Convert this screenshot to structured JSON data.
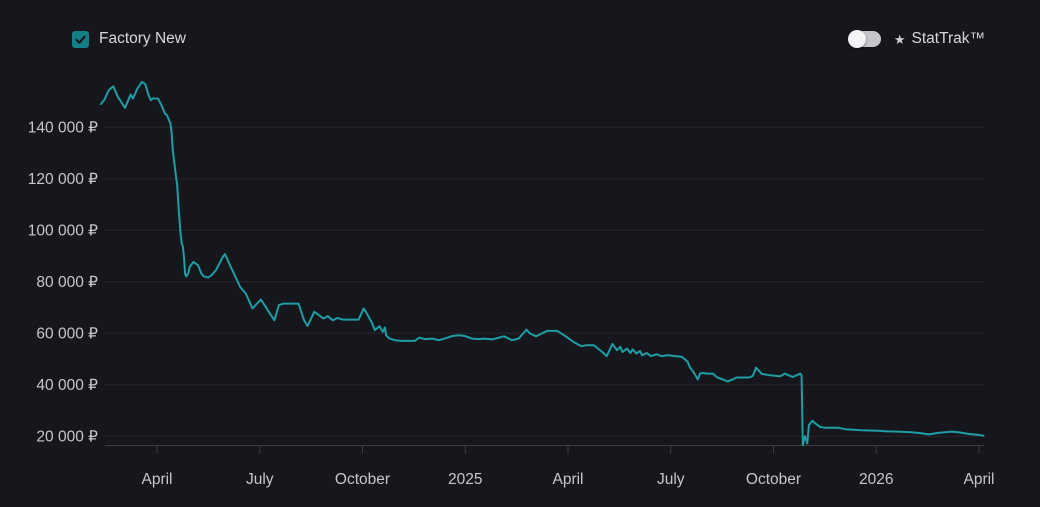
{
  "header": {
    "filter_checkbox": {
      "label": "Factory New",
      "checked": true
    },
    "stattrak_toggle": {
      "star": "★",
      "label": "StatTrak™",
      "enabled": false
    }
  },
  "colors": {
    "background": "#16171c",
    "line": "#1e9da5",
    "checkbox_fill": "#147e89",
    "checkmark": "#14151a",
    "grid": "#26272d",
    "axis": "#3c3d43",
    "tick_label": "#c6c7cb",
    "header_text": "#d7d8db",
    "toggle_track": "#c6c6ca",
    "toggle_knob": "#f4f4f6"
  },
  "chart_data": {
    "type": "line",
    "title": "",
    "currency": "RUB",
    "legend_position": "none",
    "grid": "horizontal-only",
    "y_axis": {
      "range_approx": [
        15000,
        162000
      ],
      "ticks": [
        {
          "value": 140000,
          "label": "140 000 ₽"
        },
        {
          "value": 120000,
          "label": "120 000 ₽"
        },
        {
          "value": 100000,
          "label": "100 000 ₽"
        },
        {
          "value": 80000,
          "label": "80 000 ₽"
        },
        {
          "value": 60000,
          "label": "60 000 ₽"
        },
        {
          "value": 40000,
          "label": "40 000 ₽"
        },
        {
          "value": 20000,
          "label": "20 000 ₽"
        }
      ]
    },
    "x_axis": {
      "domain": [
        "2024-02-10",
        "2026-04-08"
      ],
      "ticks": [
        {
          "label": "April",
          "date": "2024-04-01"
        },
        {
          "label": "July",
          "date": "2024-07-01"
        },
        {
          "label": "October",
          "date": "2024-10-01"
        },
        {
          "label": "2025",
          "date": "2025-01-01"
        },
        {
          "label": "April",
          "date": "2025-04-01"
        },
        {
          "label": "July",
          "date": "2025-07-01"
        },
        {
          "label": "October",
          "date": "2025-10-01"
        },
        {
          "label": "2026",
          "date": "2026-01-01"
        },
        {
          "label": "April",
          "date": "2026-04-01"
        }
      ]
    },
    "series": [
      {
        "name": "Factory New",
        "points": [
          [
            "2024-02-12",
            149000
          ],
          [
            "2024-02-15",
            150600
          ],
          [
            "2024-02-19",
            154400
          ],
          [
            "2024-02-23",
            155900
          ],
          [
            "2024-02-27",
            151800
          ],
          [
            "2024-03-03",
            147500
          ],
          [
            "2024-03-08",
            152700
          ],
          [
            "2024-03-10",
            151100
          ],
          [
            "2024-03-14",
            155000
          ],
          [
            "2024-03-18",
            157600
          ],
          [
            "2024-03-21",
            156700
          ],
          [
            "2024-03-24",
            152400
          ],
          [
            "2024-03-26",
            150500
          ],
          [
            "2024-03-28",
            151200
          ],
          [
            "2024-04-02",
            151100
          ],
          [
            "2024-04-05",
            148500
          ],
          [
            "2024-04-08",
            145300
          ],
          [
            "2024-04-10",
            144600
          ],
          [
            "2024-04-13",
            141400
          ],
          [
            "2024-04-14",
            138000
          ],
          [
            "2024-04-15",
            131000
          ],
          [
            "2024-04-17",
            124000
          ],
          [
            "2024-04-19",
            117000
          ],
          [
            "2024-04-20",
            110000
          ],
          [
            "2024-04-21",
            104000
          ],
          [
            "2024-04-22",
            98500
          ],
          [
            "2024-04-23",
            94800
          ],
          [
            "2024-04-24",
            93500
          ],
          [
            "2024-04-25",
            89500
          ],
          [
            "2024-04-26",
            83000
          ],
          [
            "2024-04-27",
            82000
          ],
          [
            "2024-04-29",
            83500
          ],
          [
            "2024-04-30",
            85700
          ],
          [
            "2024-05-03",
            87700
          ],
          [
            "2024-05-07",
            86400
          ],
          [
            "2024-05-10",
            83200
          ],
          [
            "2024-05-12",
            82100
          ],
          [
            "2024-05-16",
            81600
          ],
          [
            "2024-05-19",
            82500
          ],
          [
            "2024-05-23",
            84500
          ],
          [
            "2024-05-29",
            89600
          ],
          [
            "2024-05-31",
            90700
          ],
          [
            "2024-06-03",
            88300
          ],
          [
            "2024-06-05",
            86400
          ],
          [
            "2024-06-12",
            79900
          ],
          [
            "2024-06-14",
            78000
          ],
          [
            "2024-06-19",
            75400
          ],
          [
            "2024-06-25",
            69600
          ],
          [
            "2024-07-02",
            73100
          ],
          [
            "2024-07-09",
            68300
          ],
          [
            "2024-07-14",
            65000
          ],
          [
            "2024-07-18",
            70900
          ],
          [
            "2024-07-22",
            71500
          ],
          [
            "2024-07-29",
            71500
          ],
          [
            "2024-08-05",
            71500
          ],
          [
            "2024-08-10",
            65000
          ],
          [
            "2024-08-13",
            62800
          ],
          [
            "2024-08-19",
            68300
          ],
          [
            "2024-08-22",
            67400
          ],
          [
            "2024-08-27",
            65700
          ],
          [
            "2024-08-31",
            66600
          ],
          [
            "2024-09-05",
            65000
          ],
          [
            "2024-09-09",
            65900
          ],
          [
            "2024-09-14",
            65300
          ],
          [
            "2024-09-28",
            65300
          ],
          [
            "2024-10-02",
            69600
          ],
          [
            "2024-10-04",
            68300
          ],
          [
            "2024-10-09",
            64400
          ],
          [
            "2024-10-12",
            61200
          ],
          [
            "2024-10-16",
            62700
          ],
          [
            "2024-10-19",
            60500
          ],
          [
            "2024-10-21",
            62200
          ],
          [
            "2024-10-22",
            59200
          ],
          [
            "2024-10-25",
            57900
          ],
          [
            "2024-10-30",
            57300
          ],
          [
            "2024-11-05",
            57000
          ],
          [
            "2024-11-17",
            57000
          ],
          [
            "2024-11-21",
            58300
          ],
          [
            "2024-11-26",
            57700
          ],
          [
            "2024-12-02",
            57900
          ],
          [
            "2024-12-08",
            57300
          ],
          [
            "2024-12-13",
            57900
          ],
          [
            "2024-12-20",
            58900
          ],
          [
            "2024-12-26",
            59200
          ],
          [
            "2024-12-31",
            58900
          ],
          [
            "2025-01-07",
            57900
          ],
          [
            "2025-01-13",
            57700
          ],
          [
            "2025-01-18",
            57900
          ],
          [
            "2025-01-25",
            57600
          ],
          [
            "2025-01-31",
            58300
          ],
          [
            "2025-02-05",
            58800
          ],
          [
            "2025-02-12",
            57300
          ],
          [
            "2025-02-18",
            57900
          ],
          [
            "2025-02-25",
            61400
          ],
          [
            "2025-02-28",
            59900
          ],
          [
            "2025-03-03",
            58800
          ],
          [
            "2025-03-11",
            60500
          ],
          [
            "2025-03-13",
            60900
          ],
          [
            "2025-03-22",
            60900
          ],
          [
            "2025-03-30",
            58600
          ],
          [
            "2025-04-06",
            56600
          ],
          [
            "2025-04-13",
            54900
          ],
          [
            "2025-04-17",
            55300
          ],
          [
            "2025-04-24",
            55300
          ],
          [
            "2025-05-01",
            52700
          ],
          [
            "2025-05-05",
            51100
          ],
          [
            "2025-05-10",
            55800
          ],
          [
            "2025-05-14",
            53400
          ],
          [
            "2025-05-17",
            54700
          ],
          [
            "2025-05-19",
            52700
          ],
          [
            "2025-05-23",
            54000
          ],
          [
            "2025-05-26",
            52300
          ],
          [
            "2025-05-28",
            53700
          ],
          [
            "2025-06-01",
            52100
          ],
          [
            "2025-06-04",
            53100
          ],
          [
            "2025-06-06",
            51400
          ],
          [
            "2025-06-10",
            52300
          ],
          [
            "2025-06-14",
            51100
          ],
          [
            "2025-06-19",
            51800
          ],
          [
            "2025-06-23",
            51100
          ],
          [
            "2025-06-29",
            51400
          ],
          [
            "2025-07-05",
            51100
          ],
          [
            "2025-07-11",
            50800
          ],
          [
            "2025-07-16",
            48900
          ],
          [
            "2025-07-18",
            46700
          ],
          [
            "2025-07-21",
            45000
          ],
          [
            "2025-07-25",
            42000
          ],
          [
            "2025-07-27",
            44300
          ],
          [
            "2025-07-30",
            44600
          ],
          [
            "2025-08-02",
            44300
          ],
          [
            "2025-08-08",
            44300
          ],
          [
            "2025-08-12",
            42800
          ],
          [
            "2025-08-17",
            42000
          ],
          [
            "2025-08-21",
            41300
          ],
          [
            "2025-08-26",
            42100
          ],
          [
            "2025-08-29",
            42800
          ],
          [
            "2025-09-10",
            42800
          ],
          [
            "2025-09-13",
            43400
          ],
          [
            "2025-09-16",
            46600
          ],
          [
            "2025-09-21",
            44200
          ],
          [
            "2025-09-28",
            43700
          ],
          [
            "2025-10-07",
            43300
          ],
          [
            "2025-10-11",
            44300
          ],
          [
            "2025-10-18",
            43000
          ],
          [
            "2025-10-25",
            44300
          ],
          [
            "2025-10-26",
            43500
          ],
          [
            "2025-10-27",
            16500
          ],
          [
            "2025-10-29",
            20000
          ],
          [
            "2025-10-31",
            17200
          ],
          [
            "2025-11-02",
            24300
          ],
          [
            "2025-11-05",
            26000
          ],
          [
            "2025-11-08",
            24900
          ],
          [
            "2025-11-12",
            23600
          ],
          [
            "2025-11-16",
            23300
          ],
          [
            "2025-11-28",
            23300
          ],
          [
            "2025-12-04",
            22700
          ],
          [
            "2025-12-18",
            22300
          ],
          [
            "2026-01-03",
            22100
          ],
          [
            "2026-01-09",
            21900
          ],
          [
            "2026-01-23",
            21700
          ],
          [
            "2026-02-01",
            21500
          ],
          [
            "2026-02-10",
            21200
          ],
          [
            "2026-02-17",
            20700
          ],
          [
            "2026-02-26",
            21300
          ],
          [
            "2026-03-07",
            21800
          ],
          [
            "2026-03-13",
            21500
          ],
          [
            "2026-03-22",
            20900
          ],
          [
            "2026-03-31",
            20500
          ],
          [
            "2026-04-05",
            20200
          ]
        ]
      }
    ]
  }
}
